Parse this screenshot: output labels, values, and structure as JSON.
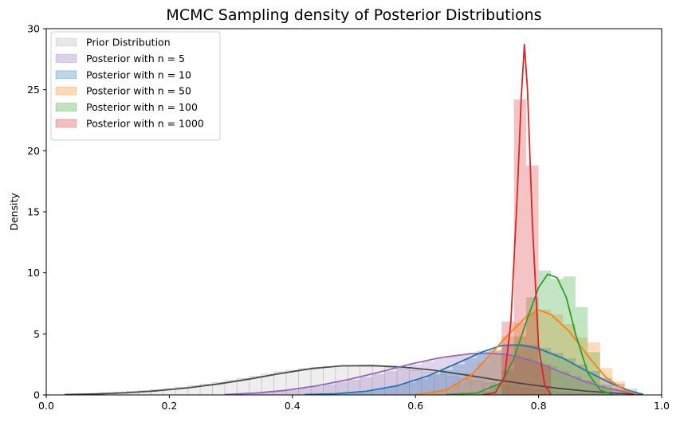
{
  "chart_data": {
    "type": "histogram-kde",
    "title": "MCMC Sampling density of Posterior Distributions",
    "xlabel": "",
    "ylabel": "Density",
    "xlim": [
      0.0,
      1.0
    ],
    "ylim": [
      0,
      30
    ],
    "x_ticks": [
      0.0,
      0.2,
      0.4,
      0.6,
      0.8,
      1.0
    ],
    "x_tick_labels": [
      "0.0",
      "0.2",
      "0.4",
      "0.6",
      "0.8",
      "1.0"
    ],
    "y_ticks": [
      0,
      5,
      10,
      15,
      20,
      25,
      30
    ],
    "y_tick_labels": [
      "0",
      "5",
      "10",
      "15",
      "20",
      "25",
      "30"
    ],
    "grid": false,
    "legend_position": "top-left",
    "series": [
      {
        "name": "Prior Distribution",
        "color": "#b0b0b0",
        "line_color": "#4a4a4a",
        "kde": [
          [
            0.03,
            0.03
          ],
          [
            0.08,
            0.08
          ],
          [
            0.13,
            0.18
          ],
          [
            0.18,
            0.34
          ],
          [
            0.23,
            0.58
          ],
          [
            0.28,
            0.9
          ],
          [
            0.33,
            1.3
          ],
          [
            0.38,
            1.75
          ],
          [
            0.43,
            2.15
          ],
          [
            0.48,
            2.38
          ],
          [
            0.53,
            2.4
          ],
          [
            0.58,
            2.28
          ],
          [
            0.63,
            2.02
          ],
          [
            0.68,
            1.65
          ],
          [
            0.73,
            1.25
          ],
          [
            0.78,
            0.88
          ],
          [
            0.83,
            0.55
          ],
          [
            0.88,
            0.3
          ],
          [
            0.93,
            0.13
          ],
          [
            0.97,
            0.04
          ]
        ],
        "bins": [
          [
            0.03,
            0.05
          ],
          [
            0.05,
            0.08
          ],
          [
            0.07,
            0.12
          ],
          [
            0.09,
            0.16
          ],
          [
            0.11,
            0.22
          ],
          [
            0.13,
            0.28
          ],
          [
            0.15,
            0.34
          ],
          [
            0.17,
            0.42
          ],
          [
            0.19,
            0.52
          ],
          [
            0.21,
            0.63
          ],
          [
            0.23,
            0.75
          ],
          [
            0.25,
            0.88
          ],
          [
            0.27,
            1.02
          ],
          [
            0.29,
            1.18
          ],
          [
            0.31,
            1.35
          ],
          [
            0.33,
            1.52
          ],
          [
            0.35,
            1.7
          ],
          [
            0.37,
            1.88
          ],
          [
            0.39,
            2.02
          ],
          [
            0.41,
            2.15
          ],
          [
            0.43,
            2.25
          ],
          [
            0.45,
            2.32
          ],
          [
            0.47,
            2.38
          ],
          [
            0.49,
            2.4
          ],
          [
            0.51,
            2.38
          ],
          [
            0.53,
            2.33
          ],
          [
            0.55,
            2.25
          ],
          [
            0.57,
            2.14
          ],
          [
            0.59,
            2.0
          ],
          [
            0.61,
            1.85
          ],
          [
            0.63,
            1.68
          ],
          [
            0.65,
            1.5
          ],
          [
            0.67,
            1.32
          ],
          [
            0.69,
            1.14
          ],
          [
            0.71,
            0.97
          ],
          [
            0.73,
            0.8
          ],
          [
            0.75,
            0.65
          ],
          [
            0.77,
            0.52
          ],
          [
            0.79,
            0.4
          ],
          [
            0.81,
            0.3
          ],
          [
            0.83,
            0.22
          ],
          [
            0.85,
            0.15
          ],
          [
            0.87,
            0.1
          ],
          [
            0.89,
            0.06
          ],
          [
            0.91,
            0.04
          ]
        ]
      },
      {
        "name": "Posterior with n = 5",
        "color": "#9467bd",
        "line_color": "#9467bd",
        "kde": [
          [
            0.29,
            0.03
          ],
          [
            0.34,
            0.15
          ],
          [
            0.39,
            0.38
          ],
          [
            0.44,
            0.75
          ],
          [
            0.49,
            1.25
          ],
          [
            0.54,
            1.85
          ],
          [
            0.59,
            2.5
          ],
          [
            0.64,
            3.05
          ],
          [
            0.69,
            3.38
          ],
          [
            0.72,
            3.42
          ],
          [
            0.75,
            3.3
          ],
          [
            0.79,
            2.8
          ],
          [
            0.83,
            2.0
          ],
          [
            0.87,
            1.2
          ],
          [
            0.91,
            0.55
          ],
          [
            0.95,
            0.18
          ],
          [
            0.97,
            0.05
          ]
        ],
        "bins": [
          [
            0.29,
            0.05
          ],
          [
            0.31,
            0.1
          ],
          [
            0.33,
            0.16
          ],
          [
            0.35,
            0.25
          ],
          [
            0.37,
            0.33
          ],
          [
            0.39,
            0.42
          ],
          [
            0.41,
            0.55
          ],
          [
            0.43,
            0.7
          ],
          [
            0.45,
            0.85
          ],
          [
            0.47,
            1.05
          ],
          [
            0.49,
            1.25
          ],
          [
            0.51,
            1.48
          ],
          [
            0.53,
            1.7
          ],
          [
            0.55,
            1.95
          ],
          [
            0.57,
            2.22
          ],
          [
            0.59,
            2.5
          ],
          [
            0.61,
            2.75
          ],
          [
            0.63,
            3.0
          ],
          [
            0.65,
            3.2
          ],
          [
            0.67,
            3.32
          ],
          [
            0.69,
            3.4
          ],
          [
            0.71,
            3.45
          ],
          [
            0.73,
            3.38
          ],
          [
            0.75,
            3.25
          ],
          [
            0.77,
            3.0
          ],
          [
            0.79,
            2.7
          ],
          [
            0.81,
            2.35
          ],
          [
            0.83,
            1.95
          ],
          [
            0.85,
            1.55
          ],
          [
            0.87,
            1.18
          ],
          [
            0.89,
            0.85
          ],
          [
            0.91,
            0.55
          ],
          [
            0.93,
            0.32
          ]
        ]
      },
      {
        "name": "Posterior with n = 10",
        "color": "#1f77b4",
        "line_color": "#1f77b4",
        "kde": [
          [
            0.42,
            0.03
          ],
          [
            0.47,
            0.1
          ],
          [
            0.52,
            0.3
          ],
          [
            0.57,
            0.75
          ],
          [
            0.62,
            1.55
          ],
          [
            0.67,
            2.65
          ],
          [
            0.71,
            3.55
          ],
          [
            0.74,
            4.05
          ],
          [
            0.77,
            4.1
          ],
          [
            0.8,
            3.8
          ],
          [
            0.84,
            3.0
          ],
          [
            0.88,
            1.9
          ],
          [
            0.92,
            0.9
          ],
          [
            0.95,
            0.3
          ],
          [
            0.97,
            0.05
          ]
        ],
        "bins": [
          [
            0.42,
            0.05
          ],
          [
            0.44,
            0.08
          ],
          [
            0.46,
            0.12
          ],
          [
            0.48,
            0.18
          ],
          [
            0.5,
            0.26
          ],
          [
            0.52,
            0.38
          ],
          [
            0.54,
            0.55
          ],
          [
            0.56,
            0.75
          ],
          [
            0.58,
            1.0
          ],
          [
            0.6,
            1.3
          ],
          [
            0.62,
            1.65
          ],
          [
            0.64,
            2.05
          ],
          [
            0.66,
            2.5
          ],
          [
            0.68,
            3.0
          ],
          [
            0.7,
            3.6
          ],
          [
            0.72,
            3.65
          ],
          [
            0.74,
            4.0
          ],
          [
            0.76,
            4.15
          ],
          [
            0.78,
            4.1
          ],
          [
            0.8,
            3.85
          ],
          [
            0.82,
            3.45
          ],
          [
            0.84,
            3.0
          ],
          [
            0.86,
            2.5
          ],
          [
            0.88,
            1.95
          ],
          [
            0.9,
            1.4
          ],
          [
            0.92,
            0.9
          ],
          [
            0.94,
            0.5
          ]
        ]
      },
      {
        "name": "Posterior with n = 50",
        "color": "#ff7f0e",
        "line_color": "#ff7f0e",
        "kde": [
          [
            0.6,
            0.03
          ],
          [
            0.65,
            0.4
          ],
          [
            0.69,
            1.6
          ],
          [
            0.72,
            3.2
          ],
          [
            0.75,
            4.9
          ],
          [
            0.78,
            6.4
          ],
          [
            0.8,
            6.95
          ],
          [
            0.82,
            6.6
          ],
          [
            0.85,
            5.2
          ],
          [
            0.88,
            3.2
          ],
          [
            0.91,
            1.4
          ],
          [
            0.94,
            0.4
          ],
          [
            0.96,
            0.05
          ]
        ],
        "bins": [
          [
            0.62,
            0.2
          ],
          [
            0.64,
            0.5
          ],
          [
            0.66,
            1.0
          ],
          [
            0.68,
            1.8
          ],
          [
            0.7,
            2.7
          ],
          [
            0.72,
            3.7
          ],
          [
            0.74,
            4.8
          ],
          [
            0.76,
            5.9
          ],
          [
            0.78,
            6.7
          ],
          [
            0.8,
            7.0
          ],
          [
            0.82,
            6.6
          ],
          [
            0.84,
            5.8
          ],
          [
            0.86,
            4.7
          ],
          [
            0.88,
            4.3
          ],
          [
            0.9,
            2.2
          ],
          [
            0.92,
            1.1
          ]
        ]
      },
      {
        "name": "Posterior with n = 100",
        "color": "#2ca02c",
        "line_color": "#2ca02c",
        "kde": [
          [
            0.65,
            0.03
          ],
          [
            0.7,
            0.15
          ],
          [
            0.74,
            1.0
          ],
          [
            0.76,
            3.0
          ],
          [
            0.78,
            6.0
          ],
          [
            0.8,
            8.8
          ],
          [
            0.815,
            9.9
          ],
          [
            0.83,
            9.6
          ],
          [
            0.845,
            8.0
          ],
          [
            0.86,
            5.0
          ],
          [
            0.88,
            1.8
          ],
          [
            0.9,
            0.4
          ],
          [
            0.92,
            0.05
          ]
        ],
        "bins": [
          [
            0.7,
            0.3
          ],
          [
            0.72,
            0.8
          ],
          [
            0.74,
            2.0
          ],
          [
            0.76,
            4.8
          ],
          [
            0.78,
            8.0
          ],
          [
            0.8,
            10.2
          ],
          [
            0.82,
            9.5
          ],
          [
            0.84,
            9.7
          ],
          [
            0.86,
            7.2
          ],
          [
            0.88,
            3.5
          ],
          [
            0.9,
            0.8
          ]
        ]
      },
      {
        "name": "Posterior with n = 1000",
        "color": "#d62728",
        "line_color": "#d62728",
        "kde": [
          [
            0.71,
            0.02
          ],
          [
            0.73,
            0.2
          ],
          [
            0.745,
            1.5
          ],
          [
            0.755,
            6.0
          ],
          [
            0.765,
            16.0
          ],
          [
            0.772,
            24.5
          ],
          [
            0.777,
            28.7
          ],
          [
            0.782,
            25.0
          ],
          [
            0.79,
            14.0
          ],
          [
            0.8,
            4.0
          ],
          [
            0.81,
            0.8
          ],
          [
            0.82,
            0.05
          ]
        ],
        "bins": [
          [
            0.74,
            6.0
          ],
          [
            0.76,
            24.2
          ],
          [
            0.78,
            18.8
          ],
          [
            0.8,
            2.5
          ]
        ]
      }
    ]
  }
}
